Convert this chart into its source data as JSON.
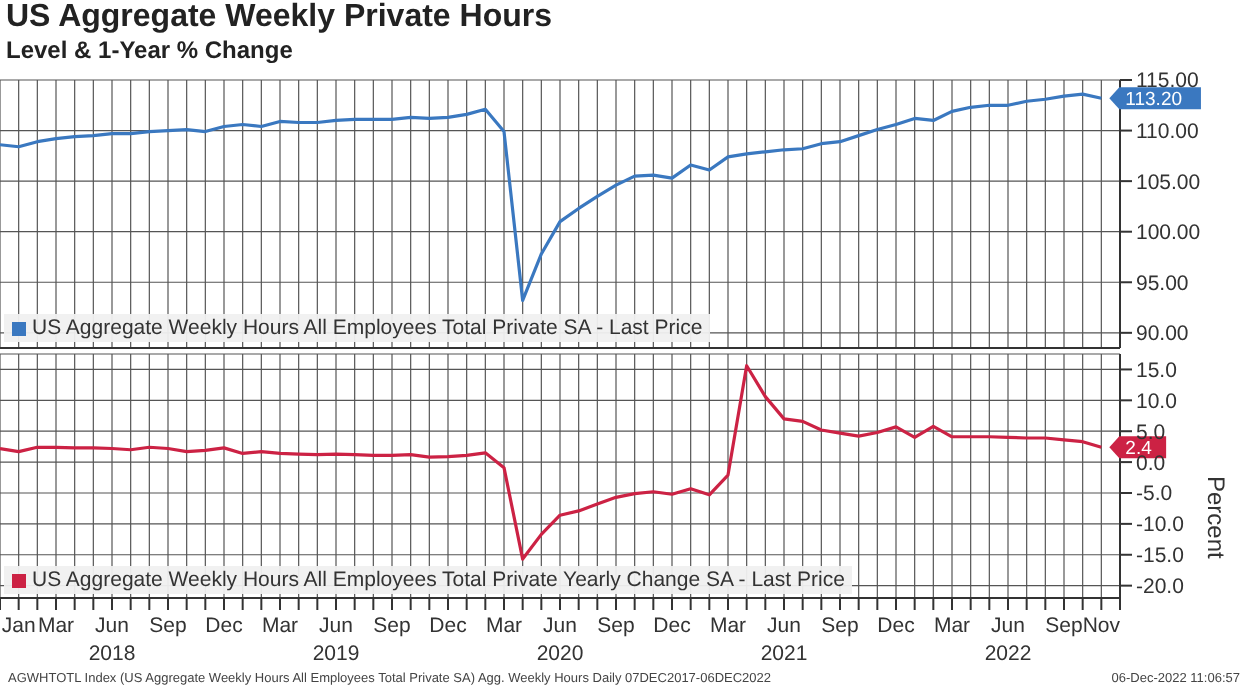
{
  "chart_data": [
    {
      "type": "line",
      "title": "US Aggregate Weekly Private Hours",
      "subtitle": "Level & 1-Year % Change",
      "x": [
        "2017-12",
        "2018-01",
        "2018-02",
        "2018-03",
        "2018-04",
        "2018-05",
        "2018-06",
        "2018-07",
        "2018-08",
        "2018-09",
        "2018-10",
        "2018-11",
        "2018-12",
        "2019-01",
        "2019-02",
        "2019-03",
        "2019-04",
        "2019-05",
        "2019-06",
        "2019-07",
        "2019-08",
        "2019-09",
        "2019-10",
        "2019-11",
        "2019-12",
        "2020-01",
        "2020-02",
        "2020-03",
        "2020-04",
        "2020-05",
        "2020-06",
        "2020-07",
        "2020-08",
        "2020-09",
        "2020-10",
        "2020-11",
        "2020-12",
        "2021-01",
        "2021-02",
        "2021-03",
        "2021-04",
        "2021-05",
        "2021-06",
        "2021-07",
        "2021-08",
        "2021-09",
        "2021-10",
        "2021-11",
        "2021-12",
        "2022-01",
        "2022-02",
        "2022-03",
        "2022-04",
        "2022-05",
        "2022-06",
        "2022-07",
        "2022-08",
        "2022-09",
        "2022-10",
        "2022-11"
      ],
      "series": [
        {
          "name": "US Aggregate Weekly Hours All Employees Total Private SA - Last Price",
          "color": "#3a78c0",
          "values": [
            108.6,
            108.4,
            108.9,
            109.2,
            109.4,
            109.5,
            109.7,
            109.7,
            109.9,
            110.0,
            110.1,
            109.9,
            110.4,
            110.6,
            110.4,
            110.9,
            110.8,
            110.8,
            111.0,
            111.1,
            111.1,
            111.1,
            111.3,
            111.2,
            111.3,
            111.6,
            112.1,
            109.9,
            93.2,
            97.8,
            101.0,
            102.3,
            103.5,
            104.6,
            105.5,
            105.6,
            105.3,
            106.6,
            106.1,
            107.4,
            107.7,
            107.9,
            108.1,
            108.2,
            108.7,
            108.9,
            109.5,
            110.1,
            110.6,
            111.2,
            111.0,
            111.9,
            112.3,
            112.5,
            112.5,
            112.9,
            113.1,
            113.4,
            113.6,
            113.2
          ]
        }
      ],
      "xlim": [
        "2017-12",
        "2022-12"
      ],
      "xticks": [
        {
          "value": "2017-12",
          "label": null
        },
        {
          "value": "2018-01",
          "label": null
        },
        {
          "value": "2018-02",
          "label": null
        },
        {
          "value": "2018-03",
          "label": null
        },
        {
          "value": "2018-04",
          "label": null
        },
        {
          "value": "2018-05",
          "label": null
        },
        {
          "value": "2018-06",
          "label": null
        },
        {
          "value": "2018-07",
          "label": null
        },
        {
          "value": "2018-08",
          "label": null
        },
        {
          "value": "2018-09",
          "label": null
        },
        {
          "value": "2018-10",
          "label": null
        },
        {
          "value": "2018-11",
          "label": null
        },
        {
          "value": "2018-12",
          "label": null
        },
        {
          "value": "2019-01",
          "label": null
        },
        {
          "value": "2019-02",
          "label": null
        },
        {
          "value": "2019-03",
          "label": null
        },
        {
          "value": "2019-04",
          "label": null
        },
        {
          "value": "2019-05",
          "label": null
        },
        {
          "value": "2019-06",
          "label": null
        },
        {
          "value": "2019-07",
          "label": null
        },
        {
          "value": "2019-08",
          "label": null
        },
        {
          "value": "2019-09",
          "label": null
        },
        {
          "value": "2019-10",
          "label": null
        },
        {
          "value": "2019-11",
          "label": null
        },
        {
          "value": "2019-12",
          "label": null
        },
        {
          "value": "2020-01",
          "label": null
        },
        {
          "value": "2020-02",
          "label": null
        },
        {
          "value": "2020-03",
          "label": null
        },
        {
          "value": "2020-04",
          "label": null
        },
        {
          "value": "2020-05",
          "label": null
        },
        {
          "value": "2020-06",
          "label": null
        },
        {
          "value": "2020-07",
          "label": null
        },
        {
          "value": "2020-08",
          "label": null
        },
        {
          "value": "2020-09",
          "label": null
        },
        {
          "value": "2020-10",
          "label": null
        },
        {
          "value": "2020-11",
          "label": null
        },
        {
          "value": "2020-12",
          "label": null
        },
        {
          "value": "2021-01",
          "label": null
        },
        {
          "value": "2021-02",
          "label": null
        },
        {
          "value": "2021-03",
          "label": null
        },
        {
          "value": "2021-04",
          "label": null
        },
        {
          "value": "2021-05",
          "label": null
        },
        {
          "value": "2021-06",
          "label": null
        },
        {
          "value": "2021-07",
          "label": null
        },
        {
          "value": "2021-08",
          "label": null
        },
        {
          "value": "2021-09",
          "label": null
        },
        {
          "value": "2021-10",
          "label": null
        },
        {
          "value": "2021-11",
          "label": null
        },
        {
          "value": "2021-12",
          "label": null
        },
        {
          "value": "2022-01",
          "label": null
        },
        {
          "value": "2022-02",
          "label": null
        },
        {
          "value": "2022-03",
          "label": null
        },
        {
          "value": "2022-04",
          "label": null
        },
        {
          "value": "2022-05",
          "label": null
        },
        {
          "value": "2022-06",
          "label": null
        },
        {
          "value": "2022-07",
          "label": null
        },
        {
          "value": "2022-08",
          "label": null
        },
        {
          "value": "2022-09",
          "label": null
        },
        {
          "value": "2022-10",
          "label": null
        },
        {
          "value": "2022-11",
          "label": null
        },
        {
          "value": "2022-12",
          "label": null
        }
      ],
      "ylim": [
        88.5,
        115
      ],
      "yticks": [
        {
          "value": 90,
          "label": "90.00"
        },
        {
          "value": 95,
          "label": "95.00"
        },
        {
          "value": 100,
          "label": "100.00"
        },
        {
          "value": 105,
          "label": "105.00"
        },
        {
          "value": 110,
          "label": "110.00"
        },
        {
          "value": 115,
          "label": "115.00"
        }
      ],
      "annotations": [
        {
          "text": "113.20",
          "x": "2022-11",
          "y": 113.2
        }
      ],
      "tick_labels": "y",
      "grid": true,
      "legend": "bottom left"
    },
    {
      "type": "line",
      "x": [
        "2017-12",
        "2018-01",
        "2018-02",
        "2018-03",
        "2018-04",
        "2018-05",
        "2018-06",
        "2018-07",
        "2018-08",
        "2018-09",
        "2018-10",
        "2018-11",
        "2018-12",
        "2019-01",
        "2019-02",
        "2019-03",
        "2019-04",
        "2019-05",
        "2019-06",
        "2019-07",
        "2019-08",
        "2019-09",
        "2019-10",
        "2019-11",
        "2019-12",
        "2020-01",
        "2020-02",
        "2020-03",
        "2020-04",
        "2020-05",
        "2020-06",
        "2020-07",
        "2020-08",
        "2020-09",
        "2020-10",
        "2020-11",
        "2020-12",
        "2021-01",
        "2021-02",
        "2021-03",
        "2021-04",
        "2021-05",
        "2021-06",
        "2021-07",
        "2021-08",
        "2021-09",
        "2021-10",
        "2021-11",
        "2021-12",
        "2022-01",
        "2022-02",
        "2022-03",
        "2022-04",
        "2022-05",
        "2022-06",
        "2022-07",
        "2022-08",
        "2022-09",
        "2022-10",
        "2022-11"
      ],
      "series": [
        {
          "name": "US Aggregate Weekly Hours All Employees Total Private Yearly Change SA - Last Price",
          "color": "#cc2244",
          "values": [
            2.2,
            1.7,
            2.4,
            2.4,
            2.3,
            2.3,
            2.2,
            2.0,
            2.4,
            2.2,
            1.7,
            1.9,
            2.3,
            1.4,
            1.7,
            1.4,
            1.3,
            1.2,
            1.3,
            1.2,
            1.1,
            1.1,
            1.2,
            0.8,
            0.9,
            1.1,
            1.5,
            -0.9,
            -15.7,
            -11.7,
            -8.6,
            -7.9,
            -6.8,
            -5.7,
            -5.1,
            -4.8,
            -5.2,
            -4.3,
            -5.3,
            -2.1,
            15.6,
            10.6,
            7.0,
            6.6,
            5.2,
            4.7,
            4.2,
            4.8,
            5.7,
            4.0,
            5.8,
            4.1,
            4.1,
            4.1,
            4.0,
            3.9,
            3.9,
            3.6,
            3.3,
            2.4
          ]
        }
      ],
      "xlim": [
        "2017-12",
        "2022-12"
      ],
      "xticks": [
        {
          "value": "2017-12",
          "label": null
        },
        {
          "value": "2018-01",
          "label": "Jan"
        },
        {
          "value": "2018-02",
          "label": null
        },
        {
          "value": "2018-03",
          "label": "Mar"
        },
        {
          "value": "2018-04",
          "label": null
        },
        {
          "value": "2018-05",
          "label": null
        },
        {
          "value": "2018-06",
          "label": "Jun\n2018"
        },
        {
          "value": "2018-07",
          "label": null
        },
        {
          "value": "2018-08",
          "label": null
        },
        {
          "value": "2018-09",
          "label": "Sep"
        },
        {
          "value": "2018-10",
          "label": null
        },
        {
          "value": "2018-11",
          "label": null
        },
        {
          "value": "2018-12",
          "label": "Dec"
        },
        {
          "value": "2019-01",
          "label": null
        },
        {
          "value": "2019-02",
          "label": null
        },
        {
          "value": "2019-03",
          "label": "Mar"
        },
        {
          "value": "2019-04",
          "label": null
        },
        {
          "value": "2019-05",
          "label": null
        },
        {
          "value": "2019-06",
          "label": "Jun\n2019"
        },
        {
          "value": "2019-07",
          "label": null
        },
        {
          "value": "2019-08",
          "label": null
        },
        {
          "value": "2019-09",
          "label": "Sep"
        },
        {
          "value": "2019-10",
          "label": null
        },
        {
          "value": "2019-11",
          "label": null
        },
        {
          "value": "2019-12",
          "label": "Dec"
        },
        {
          "value": "2020-01",
          "label": null
        },
        {
          "value": "2020-02",
          "label": null
        },
        {
          "value": "2020-03",
          "label": "Mar"
        },
        {
          "value": "2020-04",
          "label": null
        },
        {
          "value": "2020-05",
          "label": null
        },
        {
          "value": "2020-06",
          "label": "Jun\n2020"
        },
        {
          "value": "2020-07",
          "label": null
        },
        {
          "value": "2020-08",
          "label": null
        },
        {
          "value": "2020-09",
          "label": "Sep"
        },
        {
          "value": "2020-10",
          "label": null
        },
        {
          "value": "2020-11",
          "label": null
        },
        {
          "value": "2020-12",
          "label": "Dec"
        },
        {
          "value": "2021-01",
          "label": null
        },
        {
          "value": "2021-02",
          "label": null
        },
        {
          "value": "2021-03",
          "label": "Mar"
        },
        {
          "value": "2021-04",
          "label": null
        },
        {
          "value": "2021-05",
          "label": null
        },
        {
          "value": "2021-06",
          "label": "Jun\n2021"
        },
        {
          "value": "2021-07",
          "label": null
        },
        {
          "value": "2021-08",
          "label": null
        },
        {
          "value": "2021-09",
          "label": "Sep"
        },
        {
          "value": "2021-10",
          "label": null
        },
        {
          "value": "2021-11",
          "label": null
        },
        {
          "value": "2021-12",
          "label": "Dec"
        },
        {
          "value": "2022-01",
          "label": null
        },
        {
          "value": "2022-02",
          "label": null
        },
        {
          "value": "2022-03",
          "label": "Mar"
        },
        {
          "value": "2022-04",
          "label": null
        },
        {
          "value": "2022-05",
          "label": null
        },
        {
          "value": "2022-06",
          "label": "Jun\n2022"
        },
        {
          "value": "2022-07",
          "label": null
        },
        {
          "value": "2022-08",
          "label": null
        },
        {
          "value": "2022-09",
          "label": "Sep"
        },
        {
          "value": "2022-10",
          "label": null
        },
        {
          "value": "2022-11",
          "label": "Nov"
        },
        {
          "value": "2022-12",
          "label": null
        }
      ],
      "ylim": [
        -22,
        17.5
      ],
      "yticks": [
        {
          "value": -20,
          "label": "-20.0"
        },
        {
          "value": -15,
          "label": "-15.0"
        },
        {
          "value": -10,
          "label": "-10.0"
        },
        {
          "value": -5,
          "label": "-5.0"
        },
        {
          "value": 0,
          "label": "0.0"
        },
        {
          "value": 5,
          "label": "5.0"
        },
        {
          "value": 10,
          "label": "10.0"
        },
        {
          "value": 15,
          "label": "15.0"
        }
      ],
      "ylabel": "Percent",
      "annotations": [
        {
          "text": "2.4",
          "x": "2022-11",
          "y": 2.4
        },
        "AGWHTOTL Index (US Aggregate Weekly Hours All Employees Total Private SA) Agg. Weekly Hours Daily 07DEC2017-06DEC2022",
        "06-Dec-2022 11:06:57"
      ],
      "grid": true,
      "legend": "bottom left"
    }
  ]
}
